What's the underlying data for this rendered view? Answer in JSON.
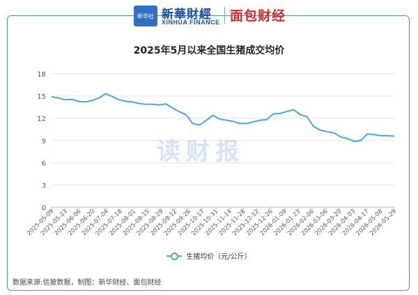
{
  "header": {
    "logo_box_text": "新华社",
    "logo_main": "新華財經",
    "logo_sub": "XINHUA FINANCE",
    "logo_red": "面包财经"
  },
  "watermark": "读财报",
  "source_note": "数据来源:信披数据，制图：新华财经、面包财经",
  "colors": {
    "line": "#4aa3d9",
    "frame": "#4a8fd6",
    "grid": "#e3e3e3"
  },
  "chart_data": {
    "type": "line",
    "title": "2025年5月以来全国生猪成交均价",
    "ylim": [
      0,
      18
    ],
    "yticks": [
      0,
      3,
      6,
      9,
      12,
      15,
      18
    ],
    "x_tick_labels": [
      "2025-05-09",
      "2025-05-23",
      "2025-06-06",
      "2025-06-20",
      "2025-07-04",
      "2025-07-18",
      "2025-08-01",
      "2025-08-15",
      "2025-08-29",
      "2025-09-12",
      "2025-09-26",
      "2025-10-17",
      "2025-10-31",
      "2025-11-14",
      "2025-11-28",
      "2025-12-12",
      "2025-12-26",
      "2026-01-09",
      "2026-01-23",
      "2026-02-06",
      "2026-03-06",
      "2026-03-20",
      "2026-04-03",
      "2026-04-17",
      "2026-05-08",
      "2026-05-29"
    ],
    "series": [
      {
        "name": "生猪均价（元/公斤）",
        "values": [
          14.9,
          14.75,
          14.5,
          14.55,
          14.3,
          14.2,
          14.4,
          14.7,
          15.3,
          14.95,
          14.5,
          14.3,
          14.2,
          14.0,
          13.9,
          13.9,
          13.8,
          13.95,
          13.4,
          12.9,
          12.5,
          11.3,
          11.1,
          11.7,
          12.4,
          11.9,
          11.75,
          11.6,
          11.3,
          11.3,
          11.5,
          11.75,
          11.8,
          12.6,
          12.65,
          12.9,
          13.15,
          12.5,
          12.2,
          10.9,
          10.4,
          10.2,
          10.05,
          9.5,
          9.25,
          8.9,
          9.0,
          9.9,
          9.8,
          9.65,
          9.65,
          9.6
        ]
      }
    ]
  }
}
